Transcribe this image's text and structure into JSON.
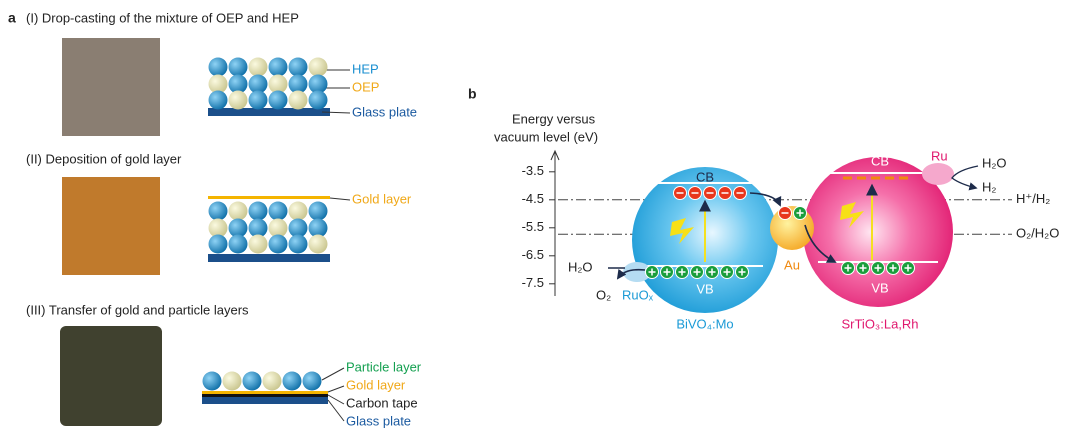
{
  "panel_a": {
    "label": "a",
    "steps": [
      {
        "title": "(I) Drop-casting of the mixture of OEP and HEP",
        "layers": [
          "HEP",
          "OEP",
          "Glass plate"
        ]
      },
      {
        "title": "(II) Deposition of gold layer",
        "layers": [
          "Gold layer"
        ]
      },
      {
        "title": "(III) Transfer of gold and particle layers",
        "layers": [
          "Particle layer",
          "Gold layer",
          "Carbon tape",
          "Glass plate"
        ]
      }
    ]
  },
  "panel_b": {
    "label": "b",
    "axis_title": [
      "Energy versus",
      "vacuum level (eV)"
    ],
    "ylim": [
      -2.9,
      -7.9
    ],
    "yticks": [
      -3.5,
      -4.5,
      -5.5,
      -6.5,
      -7.5
    ],
    "redox_levels": [
      {
        "label": "H⁺/H₂",
        "value": -4.5
      },
      {
        "label": "O₂/H₂O",
        "value": -5.73
      }
    ],
    "labels": {
      "left_cb": "CB",
      "left_vb": "VB",
      "left_material": "BiVO₄:Mo",
      "right_cb": "CB",
      "right_vb": "VB",
      "right_material": "SrTiO₃:La,Rh",
      "au": "Au",
      "ru": "Ru",
      "ruox": "RuOₓ",
      "h2o_left": "H₂O",
      "o2": "O₂",
      "h2o_right": "H₂O",
      "h2": "H₂"
    }
  }
}
